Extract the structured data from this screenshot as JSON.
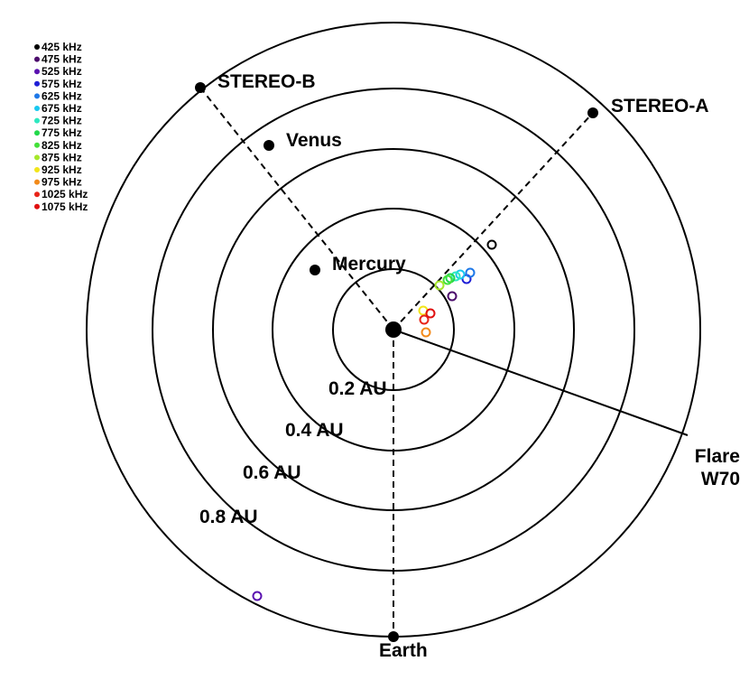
{
  "legend": [
    {
      "label": "425 kHz",
      "color": "#000000"
    },
    {
      "label": "475 kHz",
      "color": "#4b0c6b"
    },
    {
      "label": "525 kHz",
      "color": "#5a12b0"
    },
    {
      "label": "575 kHz",
      "color": "#1f1fd6"
    },
    {
      "label": "625 kHz",
      "color": "#1e78e8"
    },
    {
      "label": "675 kHz",
      "color": "#18c8f0"
    },
    {
      "label": "725 kHz",
      "color": "#2ee8c0"
    },
    {
      "label": "775 kHz",
      "color": "#22d84a"
    },
    {
      "label": "825 kHz",
      "color": "#44e03a"
    },
    {
      "label": "875 kHz",
      "color": "#a6e82a"
    },
    {
      "label": "925 kHz",
      "color": "#f2e51a"
    },
    {
      "label": "975 kHz",
      "color": "#f28a1a"
    },
    {
      "label": "1025 kHz",
      "color": "#e82418"
    },
    {
      "label": "1075 kHz",
      "color": "#e01010"
    }
  ],
  "bodies": {
    "stereo_b": "STEREO-B",
    "stereo_a": "STEREO-A",
    "venus": "Venus",
    "mercury": "Mercury",
    "earth": "Earth"
  },
  "rings": [
    "0.2 AU",
    "0.4 AU",
    "0.6 AU",
    "0.8 AU"
  ],
  "flare": [
    "Flare",
    "W70"
  ]
}
